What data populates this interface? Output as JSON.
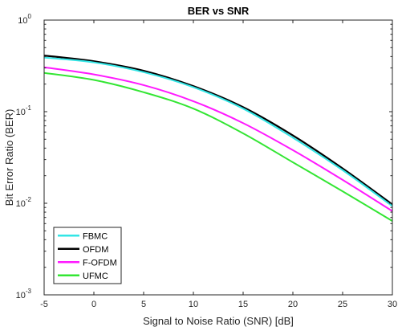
{
  "chart_data": {
    "type": "line",
    "title": "BER vs SNR",
    "xlabel": "Signal to Noise Ratio (SNR) [dB]",
    "ylabel": "Bit Error Ratio (BER)",
    "xlim": [
      -5,
      30
    ],
    "ylim": [
      0.001,
      1
    ],
    "yscale": "log",
    "x_ticks": [
      -5,
      0,
      5,
      10,
      15,
      20,
      25,
      30
    ],
    "y_ticks": [
      {
        "value": 0.001,
        "base": "10",
        "exp": "-3"
      },
      {
        "value": 0.01,
        "base": "10",
        "exp": "-2"
      },
      {
        "value": 0.1,
        "base": "10",
        "exp": "-1"
      },
      {
        "value": 1,
        "base": "10",
        "exp": "0"
      }
    ],
    "grid": false,
    "legend_position": "bottom-left",
    "x": [
      -5,
      0,
      5,
      10,
      15,
      20,
      25,
      30
    ],
    "series": [
      {
        "name": "FBMC",
        "color": "#33e6e6",
        "values": [
          0.39,
          0.345,
          0.27,
          0.185,
          0.108,
          0.052,
          0.023,
          0.0093
        ]
      },
      {
        "name": "OFDM",
        "color": "#000000",
        "values": [
          0.41,
          0.355,
          0.28,
          0.19,
          0.112,
          0.055,
          0.024,
          0.0097
        ]
      },
      {
        "name": "F-OFDM",
        "color": "#ff1aff",
        "values": [
          0.305,
          0.255,
          0.195,
          0.13,
          0.075,
          0.038,
          0.018,
          0.0082
        ]
      },
      {
        "name": "UFMC",
        "color": "#33e633",
        "values": [
          0.265,
          0.222,
          0.163,
          0.108,
          0.058,
          0.028,
          0.0135,
          0.0064
        ]
      }
    ]
  }
}
